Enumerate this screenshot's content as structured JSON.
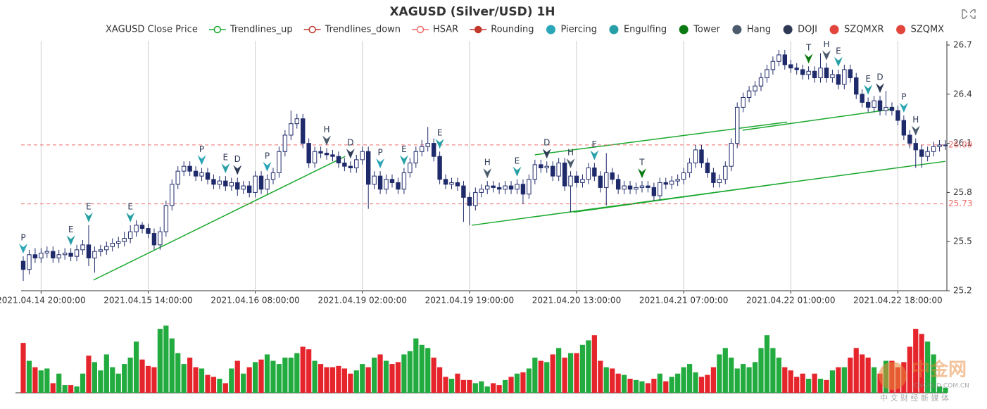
{
  "chart_data": {
    "type": "candlestick",
    "title": "XAGUSD (Silver/USD) 1H",
    "categories": [
      null,
      null,
      null,
      "2021.04.14 20:00:00",
      null,
      null,
      null,
      null,
      null,
      null,
      null,
      null,
      null,
      null,
      null,
      null,
      null,
      null,
      null,
      null,
      null,
      "2021.04.15 14:00:00",
      null,
      null,
      null,
      null,
      null,
      null,
      null,
      null,
      null,
      null,
      null,
      null,
      null,
      null,
      null,
      null,
      null,
      "2021.04.16 08:00:00",
      null,
      null,
      null,
      null,
      null,
      null,
      null,
      null,
      null,
      null,
      null,
      null,
      null,
      null,
      null,
      null,
      null,
      "2021.04.19 02:00:00",
      null,
      null,
      null,
      null,
      null,
      null,
      null,
      null,
      null,
      null,
      null,
      null,
      null,
      null,
      null,
      null,
      null,
      "2021.04.19 19:00:00",
      null,
      null,
      null,
      null,
      null,
      null,
      null,
      null,
      null,
      null,
      null,
      null,
      null,
      null,
      null,
      null,
      null,
      "2021.04.20 13:00:00",
      null,
      null,
      null,
      null,
      null,
      null,
      null,
      null,
      null,
      null,
      null,
      null,
      null,
      null,
      null,
      null,
      null,
      "2021.04.21 07:00:00",
      null,
      null,
      null,
      null,
      null,
      null,
      null,
      null,
      null,
      null,
      null,
      null,
      null,
      null,
      null,
      null,
      null,
      "2021.04.22 01:00:00",
      null,
      null,
      null,
      null,
      null,
      null,
      null,
      null,
      null,
      null,
      null,
      null,
      null,
      null,
      null,
      null,
      null,
      "2021.04.22 18:00:00",
      null,
      null,
      null,
      null,
      null,
      null,
      null,
      null
    ],
    "open": [
      25.38,
      25.33,
      25.42,
      25.4,
      25.43,
      25.44,
      25.4,
      25.42,
      25.43,
      25.41,
      25.45,
      25.48,
      25.4,
      25.44,
      25.45,
      25.47,
      25.49,
      25.5,
      25.52,
      25.56,
      25.6,
      25.58,
      25.55,
      25.48,
      25.56,
      25.72,
      25.85,
      25.93,
      25.96,
      25.93,
      25.9,
      25.92,
      25.88,
      25.85,
      25.87,
      25.84,
      25.86,
      25.82,
      25.84,
      25.8,
      25.9,
      25.82,
      25.88,
      25.92,
      26.05,
      26.15,
      26.22,
      26.25,
      26.1,
      25.98,
      26.05,
      26.04,
      26.03,
      26.02,
      25.98,
      25.96,
      25.95,
      26.0,
      26.05,
      25.85,
      25.9,
      25.82,
      25.88,
      25.86,
      25.82,
      25.92,
      25.98,
      26.05,
      26.08,
      26.1,
      26.02,
      25.88,
      25.85,
      25.86,
      25.84,
      25.77,
      25.72,
      25.8,
      25.82,
      25.84,
      25.83,
      25.82,
      25.84,
      25.82,
      25.85,
      25.79,
      25.88,
      25.97,
      25.95,
      25.96,
      25.9,
      25.98,
      25.84,
      25.9,
      25.86,
      25.88,
      25.95,
      25.9,
      25.83,
      25.92,
      25.88,
      25.82,
      25.84,
      25.82,
      25.83,
      25.84,
      25.83,
      25.78,
      25.86,
      25.85,
      25.87,
      25.88,
      25.92,
      25.98,
      26.06,
      25.98,
      25.92,
      25.86,
      25.88,
      25.96,
      26.1,
      26.32,
      26.38,
      26.42,
      26.45,
      26.5,
      26.55,
      26.6,
      26.64,
      26.58,
      26.56,
      26.55,
      26.52,
      26.54,
      26.5,
      26.56,
      26.5,
      26.52,
      26.46,
      26.55,
      26.5,
      26.4,
      26.35,
      26.32,
      26.36,
      26.3,
      26.32,
      26.3,
      26.24,
      26.15,
      26.1,
      26.06,
      26.02,
      26.05,
      26.08,
      26.09
    ],
    "high": [
      25.41,
      25.45,
      25.46,
      25.46,
      25.47,
      25.47,
      25.45,
      25.46,
      25.46,
      25.48,
      25.51,
      25.6,
      25.47,
      25.48,
      25.5,
      25.52,
      25.53,
      25.56,
      25.6,
      25.63,
      25.62,
      25.61,
      25.58,
      25.59,
      25.75,
      25.88,
      25.96,
      25.99,
      25.99,
      25.96,
      25.95,
      25.95,
      25.91,
      25.9,
      25.9,
      25.89,
      25.89,
      25.87,
      25.87,
      25.93,
      25.93,
      25.91,
      25.95,
      26.08,
      26.18,
      26.3,
      26.28,
      26.28,
      26.13,
      26.08,
      26.08,
      26.07,
      26.06,
      26.05,
      26.01,
      25.99,
      26.03,
      26.08,
      26.08,
      25.93,
      25.93,
      25.91,
      25.91,
      25.89,
      25.95,
      26.01,
      26.08,
      26.12,
      26.2,
      26.13,
      26.05,
      25.91,
      25.89,
      25.89,
      25.87,
      25.8,
      25.83,
      25.85,
      25.87,
      25.87,
      25.86,
      25.87,
      25.87,
      25.88,
      25.88,
      25.91,
      26.0,
      26.0,
      25.99,
      25.99,
      26.01,
      26.01,
      25.93,
      25.93,
      25.91,
      25.98,
      25.98,
      25.93,
      26.04,
      25.95,
      25.91,
      25.87,
      25.87,
      25.86,
      25.87,
      25.87,
      25.86,
      25.89,
      25.89,
      25.9,
      25.91,
      25.95,
      26.01,
      26.09,
      26.09,
      26.01,
      25.95,
      25.91,
      25.99,
      26.13,
      26.35,
      26.41,
      26.45,
      26.48,
      26.53,
      26.58,
      26.63,
      26.67,
      26.67,
      26.61,
      26.59,
      26.58,
      26.57,
      26.57,
      26.65,
      26.59,
      26.55,
      26.55,
      26.58,
      26.58,
      26.53,
      26.43,
      26.38,
      26.39,
      26.39,
      26.42,
      26.35,
      26.33,
      26.27,
      26.18,
      26.13,
      26.09,
      26.08,
      26.11,
      26.12,
      26.12
    ],
    "low": [
      25.26,
      25.3,
      25.37,
      25.37,
      25.4,
      25.37,
      25.37,
      25.39,
      25.38,
      25.38,
      25.42,
      25.35,
      25.31,
      25.41,
      25.42,
      25.44,
      25.46,
      25.47,
      25.49,
      25.53,
      25.55,
      25.52,
      25.45,
      25.45,
      25.53,
      25.69,
      25.82,
      25.9,
      25.9,
      25.87,
      25.87,
      25.85,
      25.82,
      25.82,
      25.81,
      25.81,
      25.78,
      25.79,
      25.77,
      25.77,
      25.79,
      25.79,
      25.85,
      25.89,
      26.02,
      26.12,
      26.19,
      26.07,
      25.95,
      25.95,
      26.01,
      26.0,
      25.99,
      25.95,
      25.93,
      25.92,
      25.92,
      25.97,
      25.7,
      25.82,
      25.79,
      25.79,
      25.83,
      25.79,
      25.79,
      25.89,
      25.95,
      26.02,
      26.05,
      25.99,
      25.85,
      25.82,
      25.82,
      25.81,
      25.62,
      25.6,
      25.69,
      25.77,
      25.79,
      25.8,
      25.79,
      25.79,
      25.79,
      25.79,
      25.73,
      25.76,
      25.85,
      25.92,
      25.92,
      25.87,
      25.87,
      25.81,
      25.68,
      25.83,
      25.83,
      25.85,
      25.87,
      25.8,
      25.72,
      25.85,
      25.79,
      25.79,
      25.79,
      25.79,
      25.8,
      25.8,
      25.75,
      25.75,
      25.82,
      25.82,
      25.84,
      25.85,
      25.89,
      25.95,
      25.95,
      25.89,
      25.83,
      25.83,
      25.85,
      25.93,
      26.07,
      26.29,
      26.35,
      26.39,
      26.42,
      26.47,
      26.52,
      26.57,
      26.55,
      26.53,
      26.52,
      26.49,
      26.49,
      26.47,
      26.47,
      26.47,
      26.47,
      26.43,
      26.43,
      26.47,
      26.37,
      26.32,
      26.29,
      26.29,
      26.27,
      26.27,
      26.27,
      26.21,
      26.12,
      26.07,
      25.95,
      25.95,
      25.99,
      26.02,
      26.05,
      26.06
    ],
    "close": [
      25.33,
      25.42,
      25.4,
      25.43,
      25.44,
      25.4,
      25.42,
      25.43,
      25.41,
      25.45,
      25.48,
      25.4,
      25.44,
      25.45,
      25.47,
      25.49,
      25.5,
      25.52,
      25.56,
      25.6,
      25.58,
      25.55,
      25.48,
      25.56,
      25.72,
      25.85,
      25.93,
      25.96,
      25.93,
      25.9,
      25.92,
      25.88,
      25.85,
      25.87,
      25.84,
      25.86,
      25.82,
      25.84,
      25.8,
      25.9,
      25.82,
      25.88,
      25.92,
      26.05,
      26.15,
      26.22,
      26.25,
      26.1,
      25.98,
      26.05,
      26.04,
      26.03,
      26.02,
      25.98,
      25.96,
      25.95,
      26.0,
      26.05,
      25.85,
      25.9,
      25.82,
      25.88,
      25.86,
      25.82,
      25.92,
      25.98,
      26.05,
      26.08,
      26.1,
      26.02,
      25.88,
      25.85,
      25.86,
      25.84,
      25.77,
      25.72,
      25.8,
      25.82,
      25.84,
      25.83,
      25.82,
      25.84,
      25.82,
      25.85,
      25.79,
      25.88,
      25.97,
      25.95,
      25.96,
      25.9,
      25.98,
      25.84,
      25.9,
      25.86,
      25.88,
      25.95,
      25.9,
      25.83,
      25.92,
      25.88,
      25.82,
      25.84,
      25.82,
      25.83,
      25.84,
      25.83,
      25.78,
      25.86,
      25.85,
      25.87,
      25.88,
      25.92,
      25.98,
      26.06,
      25.98,
      25.92,
      25.86,
      25.88,
      25.96,
      26.1,
      26.32,
      26.38,
      26.42,
      26.45,
      26.5,
      26.55,
      26.6,
      26.64,
      26.58,
      26.56,
      26.55,
      26.52,
      26.54,
      26.5,
      26.56,
      26.5,
      26.52,
      26.46,
      26.55,
      26.5,
      26.4,
      26.35,
      26.32,
      26.36,
      26.3,
      26.32,
      26.3,
      26.24,
      26.15,
      26.1,
      26.06,
      26.02,
      26.05,
      26.08,
      26.09,
      26.09
    ],
    "volume": [
      78,
      50,
      40,
      35,
      38,
      15,
      30,
      12,
      12,
      10,
      30,
      58,
      48,
      35,
      60,
      40,
      30,
      45,
      55,
      80,
      52,
      42,
      40,
      100,
      105,
      85,
      62,
      45,
      55,
      40,
      38,
      28,
      25,
      22,
      15,
      38,
      50,
      30,
      40,
      48,
      52,
      60,
      50,
      45,
      55,
      55,
      62,
      72,
      68,
      50,
      45,
      40,
      40,
      42,
      38,
      30,
      35,
      45,
      40,
      55,
      60,
      50,
      45,
      48,
      60,
      65,
      85,
      75,
      70,
      55,
      40,
      25,
      22,
      30,
      20,
      20,
      15,
      18,
      10,
      15,
      12,
      20,
      25,
      30,
      32,
      38,
      55,
      50,
      48,
      60,
      70,
      55,
      62,
      62,
      75,
      82,
      90,
      50,
      40,
      38,
      30,
      28,
      22,
      20,
      18,
      15,
      22,
      30,
      18,
      25,
      30,
      40,
      45,
      32,
      25,
      28,
      40,
      60,
      70,
      55,
      38,
      45,
      40,
      48,
      70,
      90,
      70,
      55,
      40,
      35,
      25,
      30,
      22,
      30,
      22,
      20,
      35,
      40,
      40,
      55,
      70,
      60,
      55,
      40,
      30,
      50,
      50,
      40,
      48,
      72,
      100,
      92,
      80,
      60,
      10,
      8
    ],
    "volume_ylim": [
      0,
      110
    ],
    "up_color": "#ffffff",
    "down_color": "#1f2a6b",
    "candle_edge": "#1f2a6b",
    "volume_up_color": "#22ab3e",
    "volume_down_color": "#e6242b",
    "ylim": [
      25.2,
      26.7
    ],
    "yticks": [
      25.2,
      25.5,
      25.8,
      26.1,
      26.4,
      26.7
    ],
    "grid_x": true,
    "series": [
      {
        "name": "XAGUSD Close Price",
        "color": "#1f2a6b"
      },
      {
        "name": "Trendlines_up",
        "color": "#1aa82e",
        "symbol": "line-circle",
        "lines": [
          {
            "x": [
              11.8,
              54.1
            ],
            "y": [
              25.265,
              26.02
            ]
          },
          {
            "x": [
              75.4,
              155
            ],
            "y": [
              25.6,
              25.99
            ]
          },
          {
            "x": [
              86,
              128.4
            ],
            "y": [
              26.03,
              26.23
            ]
          },
          {
            "x": [
              92.5,
              128.4
            ],
            "y": [
              25.68,
              25.86
            ]
          },
          {
            "x": [
              120.9,
              146.4
            ],
            "y": [
              26.18,
              26.31
            ]
          }
        ]
      },
      {
        "name": "Trendlines_down",
        "color": "#c0392b",
        "symbol": "line-circle"
      },
      {
        "name": "HSAR",
        "color": "#ef6b6b",
        "symbol": "line-circle",
        "levels": [
          26.09,
          25.73
        ]
      },
      {
        "name": "Rounding",
        "color": "#c0392b",
        "symbol": "line-dot"
      },
      {
        "name": "Piercing",
        "color": "#2aa6b8",
        "symbol": "dot",
        "points": [
          {
            "index": 0,
            "label": "P"
          },
          {
            "index": 30,
            "label": "P"
          },
          {
            "index": 41,
            "label": "P"
          },
          {
            "index": 60,
            "label": "P"
          },
          {
            "index": 148,
            "label": "P"
          }
        ]
      },
      {
        "name": "Engulfing",
        "color": "#26a0a6",
        "symbol": "dot",
        "points": [
          {
            "index": 8,
            "label": "E"
          },
          {
            "index": 11,
            "label": "E"
          },
          {
            "index": 18,
            "label": "E"
          },
          {
            "index": 34,
            "label": "E"
          },
          {
            "index": 64,
            "label": "E"
          },
          {
            "index": 70,
            "label": "E"
          },
          {
            "index": 83,
            "label": "E"
          },
          {
            "index": 96,
            "label": "E"
          },
          {
            "index": 137,
            "label": "E"
          },
          {
            "index": 142,
            "label": "E"
          }
        ]
      },
      {
        "name": "Tower",
        "color": "#0b7a12",
        "symbol": "dot",
        "points": [
          {
            "index": 104,
            "label": "T"
          },
          {
            "index": 132,
            "label": "T"
          }
        ]
      },
      {
        "name": "Hang",
        "color": "#4b5b6b",
        "symbol": "dot",
        "points": [
          {
            "index": 51,
            "label": "H"
          },
          {
            "index": 78,
            "label": "H"
          },
          {
            "index": 92,
            "label": "H"
          },
          {
            "index": 135,
            "label": "H"
          },
          {
            "index": 150,
            "label": "H"
          }
        ]
      },
      {
        "name": "DOJI",
        "color": "#2e3a55",
        "symbol": "dot",
        "points": [
          {
            "index": 36,
            "label": "D"
          },
          {
            "index": 55,
            "label": "D"
          },
          {
            "index": 88,
            "label": "D"
          },
          {
            "index": 144,
            "label": "D"
          }
        ]
      },
      {
        "name": "SZQMXR",
        "color": "#e2453c",
        "symbol": "dot"
      },
      {
        "name": "SZQMX",
        "color": "#e2453c",
        "symbol": "dot"
      }
    ],
    "watermark": {
      "logo": "中金网",
      "site": "CNGOLD.COM.CN",
      "slogan": "中 文 财 经 新 媒 体"
    }
  }
}
